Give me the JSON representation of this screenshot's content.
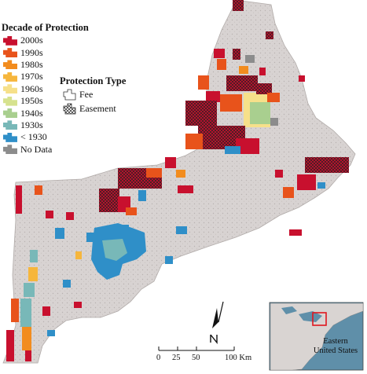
{
  "legend": {
    "title": "Decade of Protection",
    "items": [
      {
        "label": "2000s",
        "color": "#c8102e"
      },
      {
        "label": "1990s",
        "color": "#e8531b"
      },
      {
        "label": "1980s",
        "color": "#f28c1e"
      },
      {
        "label": "1970s",
        "color": "#f6b63c"
      },
      {
        "label": "1960s",
        "color": "#f6e08a"
      },
      {
        "label": "1950s",
        "color": "#d6e28e"
      },
      {
        "label": "1940s",
        "color": "#a9cf8f"
      },
      {
        "label": "1930s",
        "color": "#78b8b8"
      },
      {
        "label": "< 1930",
        "color": "#2f8fc8"
      },
      {
        "label": "No Data",
        "color": "#8c8c8c"
      }
    ]
  },
  "protection_type": {
    "title": "Protection Type",
    "fee_label": "Fee",
    "easement_label": "Easement"
  },
  "scale_bar": {
    "ticks": [
      "0",
      "25",
      "50",
      "100 Km"
    ]
  },
  "inset": {
    "label_line1": "Eastern",
    "label_line2": "United States",
    "highlight_color": "#e0161e"
  },
  "north_arrow": {
    "label": "N"
  },
  "colors": {
    "land": "#d8d3d2",
    "coast_outline": "#b0aaa8",
    "inset_ocean": "#5f8fa9",
    "inset_land": "#d9d4d2"
  }
}
